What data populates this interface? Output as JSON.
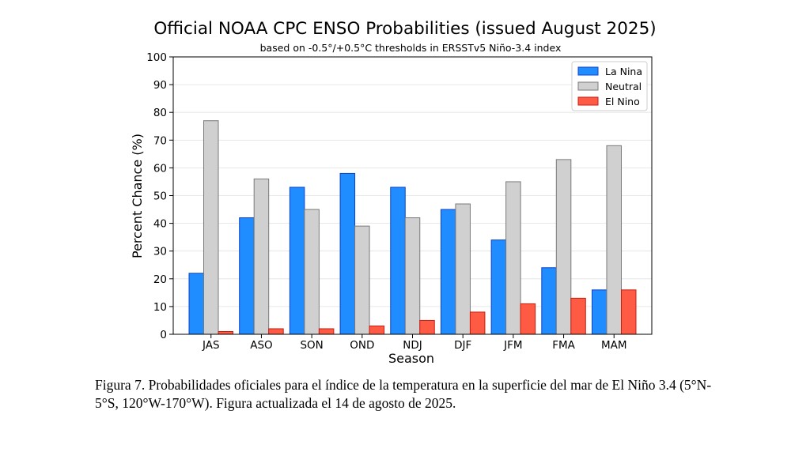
{
  "chart_data": {
    "type": "bar",
    "title": "Official NOAA CPC ENSO Probabilities (issued August 2025)",
    "subtitle": "based on -0.5°/+0.5°C thresholds in ERSSTv5 Niño-3.4 index",
    "xlabel": "Season",
    "ylabel": "Percent Chance (%)",
    "ylim": [
      0,
      100
    ],
    "yticks": [
      0,
      10,
      20,
      30,
      40,
      50,
      60,
      70,
      80,
      90,
      100
    ],
    "grid": true,
    "legend_position": "top-right",
    "categories": [
      "JAS",
      "ASO",
      "SON",
      "OND",
      "NDJ",
      "DJF",
      "JFM",
      "FMA",
      "MAM"
    ],
    "series": [
      {
        "name": "La Nina",
        "color": "#1f8cff",
        "edge": "#1042c8",
        "values": [
          22,
          42,
          53,
          58,
          53,
          45,
          34,
          24,
          16
        ]
      },
      {
        "name": "Neutral",
        "color": "#d0d0d0",
        "edge": "#7a7a7a",
        "values": [
          77,
          56,
          45,
          39,
          42,
          47,
          55,
          63,
          68
        ]
      },
      {
        "name": "El Nino",
        "color": "#ff5a44",
        "edge": "#c81e10",
        "values": [
          1,
          2,
          2,
          3,
          5,
          8,
          11,
          13,
          16
        ]
      }
    ]
  },
  "caption": {
    "text": "Figura 7. Probabilidades oficiales para el índice de la temperatura en la superficie del mar de El Niño 3.4 (5°N-5°S, 120°W-170°W). Figura actualizada el 14 de agosto de 2025."
  }
}
